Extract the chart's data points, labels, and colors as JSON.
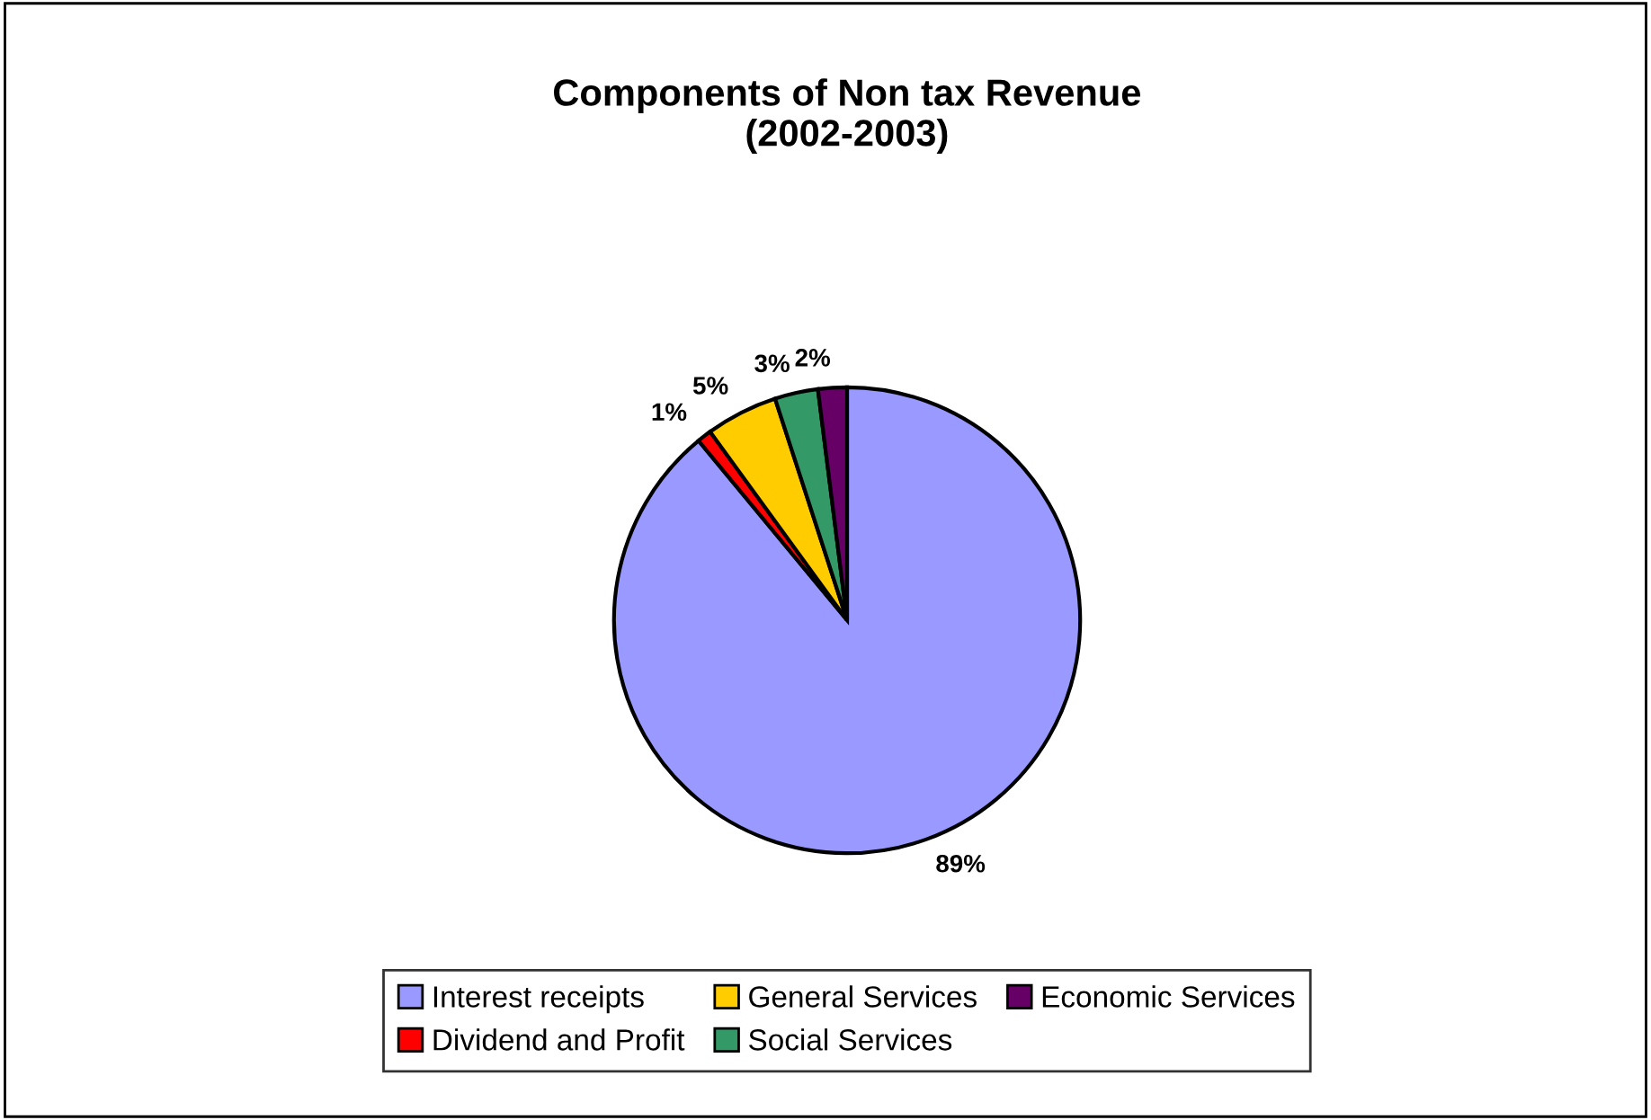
{
  "chart_data": {
    "type": "pie",
    "title": "Components of Non tax Revenue\n(2002-2003)",
    "categories": [
      "Interest receipts",
      "Dividend and Profit",
      "General Services",
      "Social Services",
      "Economic Services"
    ],
    "values": [
      89,
      1,
      5,
      3,
      2
    ],
    "value_labels": [
      "89%",
      "1%",
      "5%",
      "3%",
      "2%"
    ],
    "colors": [
      "#9999ff",
      "#ff0000",
      "#ffcc00",
      "#339966",
      "#660066"
    ],
    "legend": "bottom"
  }
}
